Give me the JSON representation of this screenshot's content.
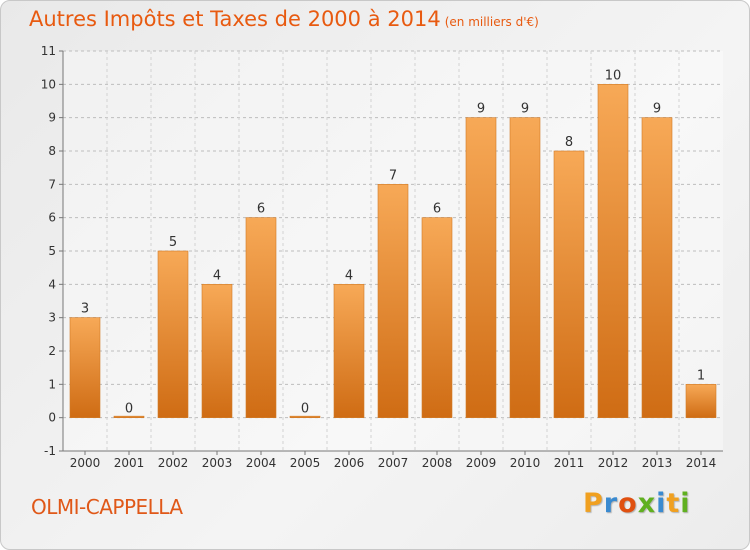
{
  "page": {
    "commune": "OLMI-CAPPELLA",
    "logo_letters": [
      "P",
      "r",
      "o",
      "x",
      "i",
      "t",
      "i"
    ],
    "logo_colors": [
      "#f0a020",
      "#3a8ad0",
      "#e05010",
      "#60b020",
      "#3a8ad0",
      "#f0a020",
      "#60b020"
    ]
  },
  "chart_data": {
    "type": "bar",
    "title": "Autres Impôts et Taxes de 2000 à 2014",
    "unit": "(en milliers d'€)",
    "categories": [
      "2000",
      "2001",
      "2002",
      "2003",
      "2004",
      "2005",
      "2006",
      "2007",
      "2008",
      "2009",
      "2010",
      "2011",
      "2012",
      "2013",
      "2014"
    ],
    "values": [
      3,
      0,
      5,
      4,
      6,
      0,
      4,
      7,
      6,
      9,
      9,
      8,
      10,
      9,
      1
    ],
    "ylim": [
      -1,
      11
    ],
    "yticks": [
      -1,
      0,
      1,
      2,
      3,
      4,
      5,
      6,
      7,
      8,
      9,
      10,
      11
    ],
    "grid": true,
    "bar_color": "#e98a2e",
    "bar_color_light": "#f7a957",
    "bar_color_dark": "#cf6c14"
  }
}
